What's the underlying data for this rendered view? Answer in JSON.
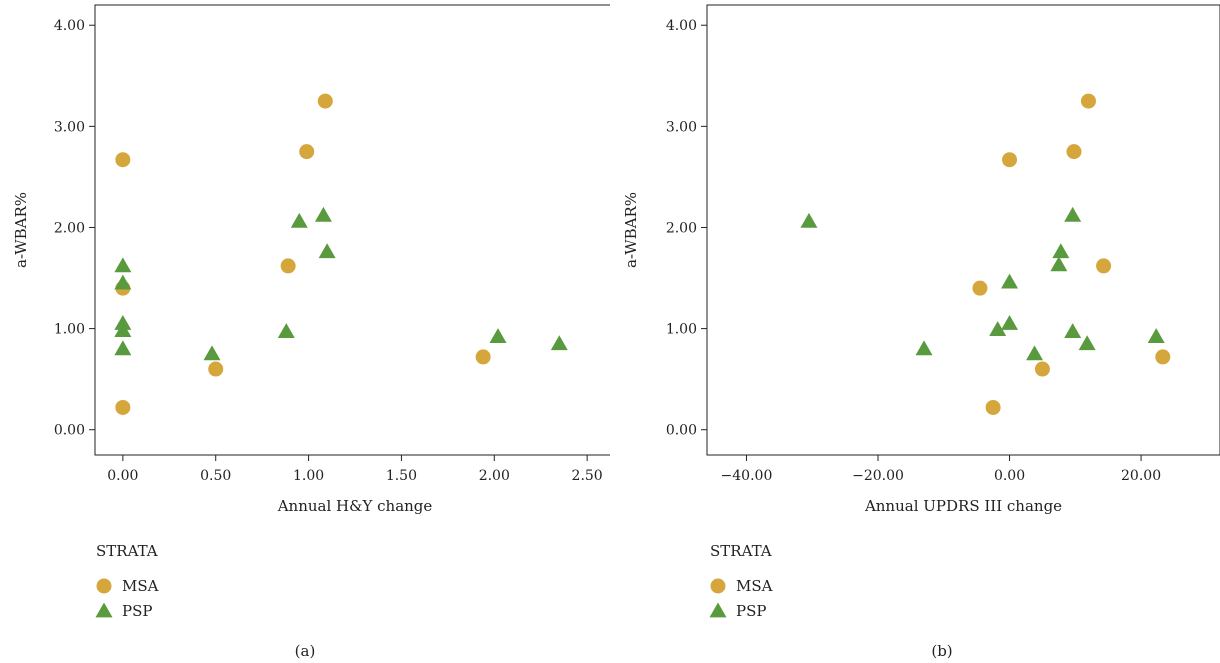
{
  "chart_data": [
    {
      "type": "scatter",
      "xlabel": "Annual H&Y change",
      "ylabel": "a-WBAR%",
      "xlim": [
        -0.15,
        2.65
      ],
      "ylim": [
        -0.25,
        4.2
      ],
      "xticks": [
        0,
        0.5,
        1.0,
        1.5,
        2.0,
        2.5
      ],
      "xtick_labels": [
        "0.00",
        "0.50",
        "1.00",
        "1.50",
        "2.00",
        "2.50"
      ],
      "yticks": [
        0,
        1,
        2,
        3,
        4
      ],
      "ytick_labels": [
        "0.00",
        "1.00",
        "2.00",
        "3.00",
        "4.00"
      ],
      "grid": false,
      "legend_title": "STRATA",
      "legend_position": "bottom-left",
      "caption": "(a)",
      "series": [
        {
          "name": "MSA",
          "marker": "circle",
          "color": "#D4A63C",
          "points": [
            [
              0.0,
              2.67
            ],
            [
              0.0,
              1.4
            ],
            [
              0.0,
              0.22
            ],
            [
              0.5,
              0.6
            ],
            [
              0.89,
              1.62
            ],
            [
              0.99,
              2.75
            ],
            [
              1.09,
              3.25
            ],
            [
              1.94,
              0.72
            ]
          ]
        },
        {
          "name": "PSP",
          "marker": "triangle",
          "color": "#5A9A3E",
          "points": [
            [
              0.0,
              1.62
            ],
            [
              0.0,
              1.45
            ],
            [
              0.0,
              1.05
            ],
            [
              0.0,
              0.98
            ],
            [
              0.0,
              0.8
            ],
            [
              0.48,
              0.75
            ],
            [
              0.88,
              0.97
            ],
            [
              0.95,
              2.06
            ],
            [
              1.08,
              2.12
            ],
            [
              1.1,
              1.76
            ],
            [
              2.02,
              0.92
            ],
            [
              2.35,
              0.85
            ]
          ]
        }
      ]
    },
    {
      "type": "scatter",
      "xlabel": "Annual UPDRS III change",
      "ylabel": "a-WBAR%",
      "xlim": [
        -46,
        32
      ],
      "ylim": [
        -0.25,
        4.2
      ],
      "xticks": [
        -40,
        -20,
        0,
        20
      ],
      "xtick_labels": [
        "−40.00",
        "−20.00",
        "0.00",
        "20.00"
      ],
      "yticks": [
        0,
        1,
        2,
        3,
        4
      ],
      "ytick_labels": [
        "0.00",
        "1.00",
        "2.00",
        "3.00",
        "4.00"
      ],
      "grid": false,
      "legend_title": "STRATA",
      "legend_position": "bottom-left",
      "caption": "(b)",
      "series": [
        {
          "name": "MSA",
          "marker": "circle",
          "color": "#D4A63C",
          "points": [
            [
              0.0,
              2.67
            ],
            [
              -4.5,
              1.4
            ],
            [
              -2.5,
              0.22
            ],
            [
              5.0,
              0.6
            ],
            [
              14.3,
              1.62
            ],
            [
              9.8,
              2.75
            ],
            [
              12.0,
              3.25
            ],
            [
              23.3,
              0.72
            ]
          ]
        },
        {
          "name": "PSP",
          "marker": "triangle",
          "color": "#5A9A3E",
          "points": [
            [
              -30.5,
              2.06
            ],
            [
              -13.0,
              0.8
            ],
            [
              -1.8,
              0.99
            ],
            [
              0.0,
              1.46
            ],
            [
              0.0,
              1.05
            ],
            [
              3.8,
              0.75
            ],
            [
              7.5,
              1.63
            ],
            [
              7.8,
              1.76
            ],
            [
              9.6,
              2.12
            ],
            [
              9.6,
              0.97
            ],
            [
              11.8,
              0.85
            ],
            [
              22.3,
              0.92
            ]
          ]
        }
      ]
    }
  ]
}
